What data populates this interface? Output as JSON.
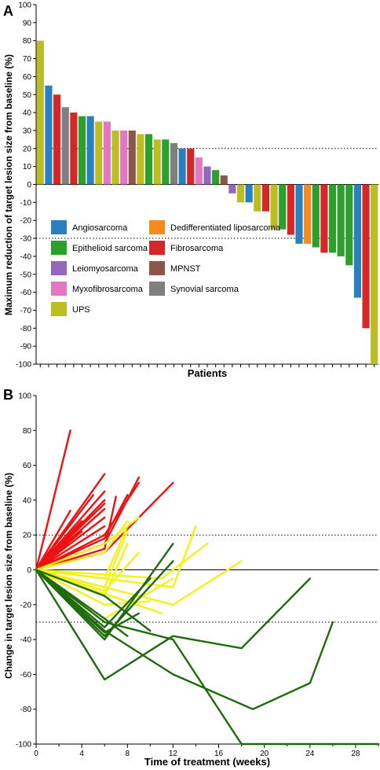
{
  "chart_data": [
    {
      "type": "bar",
      "panel_label": "A",
      "xlabel": "Patients",
      "ylabel": "Maximum reduction of target lesion size from baseline (%)",
      "ylim": [
        -100,
        100
      ],
      "yticks": [
        -100,
        -90,
        -80,
        -70,
        -60,
        -50,
        -40,
        -30,
        -20,
        -10,
        0,
        10,
        20,
        30,
        40,
        50,
        60,
        70,
        80,
        90,
        100
      ],
      "reference_lines": [
        20,
        -30
      ],
      "legend": [
        {
          "name": "Angiosarcoma",
          "color": "#2a7fc0"
        },
        {
          "name": "Dedifferentiated liposarcoma",
          "color": "#f58a1f"
        },
        {
          "name": "Epithelioid sarcoma",
          "color": "#2ca02c"
        },
        {
          "name": "Fibrosarcoma",
          "color": "#d62728"
        },
        {
          "name": "Leiomyosarcoma",
          "color": "#9467bd"
        },
        {
          "name": "MPNST",
          "color": "#8c564b"
        },
        {
          "name": "Myxofibrosarcoma",
          "color": "#e377c2"
        },
        {
          "name": "Synovial sarcoma",
          "color": "#7f7f7f"
        },
        {
          "name": "UPS",
          "color": "#bcbd22"
        }
      ],
      "bars": [
        {
          "value": 80,
          "type": "UPS"
        },
        {
          "value": 55,
          "type": "Angiosarcoma"
        },
        {
          "value": 50,
          "type": "Fibrosarcoma"
        },
        {
          "value": 43,
          "type": "Synovial sarcoma"
        },
        {
          "value": 40,
          "type": "Fibrosarcoma"
        },
        {
          "value": 38,
          "type": "Epithelioid sarcoma"
        },
        {
          "value": 38,
          "type": "Angiosarcoma"
        },
        {
          "value": 35,
          "type": "UPS"
        },
        {
          "value": 35,
          "type": "Myxofibrosarcoma"
        },
        {
          "value": 30,
          "type": "UPS"
        },
        {
          "value": 30,
          "type": "Myxofibrosarcoma"
        },
        {
          "value": 30,
          "type": "MPNST"
        },
        {
          "value": 28,
          "type": "UPS"
        },
        {
          "value": 28,
          "type": "Epithelioid sarcoma"
        },
        {
          "value": 25,
          "type": "UPS"
        },
        {
          "value": 25,
          "type": "Epithelioid sarcoma"
        },
        {
          "value": 23,
          "type": "Synovial sarcoma"
        },
        {
          "value": 20,
          "type": "Angiosarcoma"
        },
        {
          "value": 20,
          "type": "Fibrosarcoma"
        },
        {
          "value": 15,
          "type": "Myxofibrosarcoma"
        },
        {
          "value": 10,
          "type": "Leiomyosarcoma"
        },
        {
          "value": 8,
          "type": "Epithelioid sarcoma"
        },
        {
          "value": 5,
          "type": "MPNST"
        },
        {
          "value": -5,
          "type": "Leiomyosarcoma"
        },
        {
          "value": -10,
          "type": "UPS"
        },
        {
          "value": -10,
          "type": "Angiosarcoma"
        },
        {
          "value": -15,
          "type": "UPS"
        },
        {
          "value": -15,
          "type": "Fibrosarcoma"
        },
        {
          "value": -25,
          "type": "UPS"
        },
        {
          "value": -25,
          "type": "Epithelioid sarcoma"
        },
        {
          "value": -28,
          "type": "Fibrosarcoma"
        },
        {
          "value": -33,
          "type": "Angiosarcoma"
        },
        {
          "value": -33,
          "type": "Dedifferentiated liposarcoma"
        },
        {
          "value": -35,
          "type": "Epithelioid sarcoma"
        },
        {
          "value": -38,
          "type": "Fibrosarcoma"
        },
        {
          "value": -38,
          "type": "Epithelioid sarcoma"
        },
        {
          "value": -40,
          "type": "Epithelioid sarcoma"
        },
        {
          "value": -45,
          "type": "Epithelioid sarcoma"
        },
        {
          "value": -63,
          "type": "Angiosarcoma"
        },
        {
          "value": -80,
          "type": "Fibrosarcoma"
        },
        {
          "value": -100,
          "type": "UPS"
        }
      ]
    },
    {
      "type": "line",
      "panel_label": "B",
      "xlabel": "Time of treatment (weeks)",
      "ylabel": "Change in target lesion size from baseline (%)",
      "xlim": [
        0,
        30
      ],
      "ylim": [
        -100,
        100
      ],
      "xticks": [
        0,
        4,
        8,
        12,
        16,
        20,
        24,
        28
      ],
      "yticks": [
        -100,
        -80,
        -60,
        -40,
        -20,
        0,
        20,
        40,
        60,
        80,
        100
      ],
      "reference_lines": [
        20,
        -30
      ],
      "colors": {
        "red": "#ee1111",
        "yellow": "#f2f21a",
        "green": "#1e6b0c"
      },
      "series": [
        {
          "color": "red",
          "points": [
            [
              0,
              0
            ],
            [
              3,
              80
            ]
          ]
        },
        {
          "color": "red",
          "points": [
            [
              0,
              0
            ],
            [
              6,
              55
            ]
          ]
        },
        {
          "color": "red",
          "points": [
            [
              0,
              0
            ],
            [
              6,
              15
            ],
            [
              9,
              53
            ]
          ]
        },
        {
          "color": "red",
          "points": [
            [
              0,
              0
            ],
            [
              6,
              10
            ],
            [
              12,
              50
            ]
          ]
        },
        {
          "color": "red",
          "points": [
            [
              0,
              0
            ],
            [
              6,
              45
            ]
          ]
        },
        {
          "color": "red",
          "points": [
            [
              0,
              0
            ],
            [
              6,
              40
            ]
          ]
        },
        {
          "color": "red",
          "points": [
            [
              0,
              0
            ],
            [
              6,
              38
            ]
          ]
        },
        {
          "color": "red",
          "points": [
            [
              0,
              0
            ],
            [
              6,
              35
            ]
          ]
        },
        {
          "color": "red",
          "points": [
            [
              0,
              0
            ],
            [
              5,
              43
            ]
          ]
        },
        {
          "color": "red",
          "points": [
            [
              0,
              0
            ],
            [
              6,
              30
            ]
          ]
        },
        {
          "color": "red",
          "points": [
            [
              0,
              0
            ],
            [
              6,
              25
            ]
          ]
        },
        {
          "color": "red",
          "points": [
            [
              0,
              0
            ],
            [
              6,
              20
            ],
            [
              9,
              50
            ]
          ]
        },
        {
          "color": "red",
          "points": [
            [
              0,
              0
            ],
            [
              6,
              18
            ],
            [
              8,
              43
            ]
          ]
        },
        {
          "color": "red",
          "points": [
            [
              0,
              0
            ],
            [
              4,
              28
            ]
          ]
        },
        {
          "color": "red",
          "points": [
            [
              0,
              0
            ],
            [
              4,
              22
            ]
          ]
        },
        {
          "color": "red",
          "points": [
            [
              0,
              0
            ],
            [
              6,
              12
            ],
            [
              7,
              42
            ]
          ]
        },
        {
          "color": "red",
          "points": [
            [
              0,
              0
            ],
            [
              3,
              34
            ]
          ]
        },
        {
          "color": "yellow",
          "points": [
            [
              0,
              0
            ],
            [
              6,
              15
            ],
            [
              9,
              30
            ]
          ]
        },
        {
          "color": "yellow",
          "points": [
            [
              0,
              0
            ],
            [
              6,
              10
            ],
            [
              8,
              28
            ]
          ]
        },
        {
          "color": "yellow",
          "points": [
            [
              0,
              0
            ],
            [
              6,
              -5
            ],
            [
              8,
              25
            ]
          ]
        },
        {
          "color": "yellow",
          "points": [
            [
              0,
              0
            ],
            [
              6,
              -10
            ],
            [
              8,
              22
            ]
          ]
        },
        {
          "color": "yellow",
          "points": [
            [
              0,
              0
            ],
            [
              6,
              -12
            ],
            [
              9,
              10
            ]
          ]
        },
        {
          "color": "yellow",
          "points": [
            [
              0,
              0
            ],
            [
              6,
              -15
            ],
            [
              8,
              15
            ]
          ]
        },
        {
          "color": "yellow",
          "points": [
            [
              0,
              0
            ],
            [
              12,
              -10
            ],
            [
              14,
              25
            ]
          ]
        },
        {
          "color": "yellow",
          "points": [
            [
              0,
              0
            ],
            [
              11,
              -5
            ],
            [
              15,
              15
            ]
          ]
        },
        {
          "color": "yellow",
          "points": [
            [
              0,
              0
            ],
            [
              12,
              -20
            ],
            [
              18,
              5
            ]
          ]
        },
        {
          "color": "yellow",
          "points": [
            [
              0,
              0
            ],
            [
              11,
              -25
            ]
          ]
        },
        {
          "color": "yellow",
          "points": [
            [
              0,
              0
            ],
            [
              6,
              -28
            ],
            [
              12,
              -5
            ]
          ]
        },
        {
          "color": "yellow",
          "points": [
            [
              0,
              0
            ],
            [
              6,
              -20
            ],
            [
              10,
              -18
            ]
          ]
        },
        {
          "color": "green",
          "points": [
            [
              0,
              0
            ],
            [
              6,
              -63
            ],
            [
              12,
              -38
            ],
            [
              18,
              -45
            ],
            [
              24,
              -5
            ]
          ]
        },
        {
          "color": "green",
          "points": [
            [
              0,
              0
            ],
            [
              6,
              -35
            ],
            [
              12,
              -60
            ],
            [
              19,
              -80
            ],
            [
              24,
              -65
            ],
            [
              26,
              -30
            ]
          ]
        },
        {
          "color": "green",
          "points": [
            [
              0,
              0
            ],
            [
              6,
              -30
            ],
            [
              12,
              -40
            ],
            [
              18,
              -100
            ],
            [
              30,
              -100
            ]
          ]
        },
        {
          "color": "green",
          "points": [
            [
              0,
              0
            ],
            [
              6,
              -40
            ],
            [
              12,
              15
            ]
          ]
        },
        {
          "color": "green",
          "points": [
            [
              0,
              0
            ],
            [
              6,
              -38
            ],
            [
              12,
              5
            ]
          ]
        },
        {
          "color": "green",
          "points": [
            [
              0,
              0
            ],
            [
              6,
              -33
            ],
            [
              10,
              -5
            ]
          ]
        },
        {
          "color": "green",
          "points": [
            [
              0,
              0
            ],
            [
              6,
              -36
            ],
            [
              9,
              -25
            ]
          ]
        },
        {
          "color": "green",
          "points": [
            [
              0,
              0
            ],
            [
              6,
              -28
            ],
            [
              8,
              -38
            ]
          ]
        },
        {
          "color": "green",
          "points": [
            [
              0,
              0
            ],
            [
              6,
              -15
            ],
            [
              10,
              -35
            ]
          ]
        }
      ]
    }
  ]
}
